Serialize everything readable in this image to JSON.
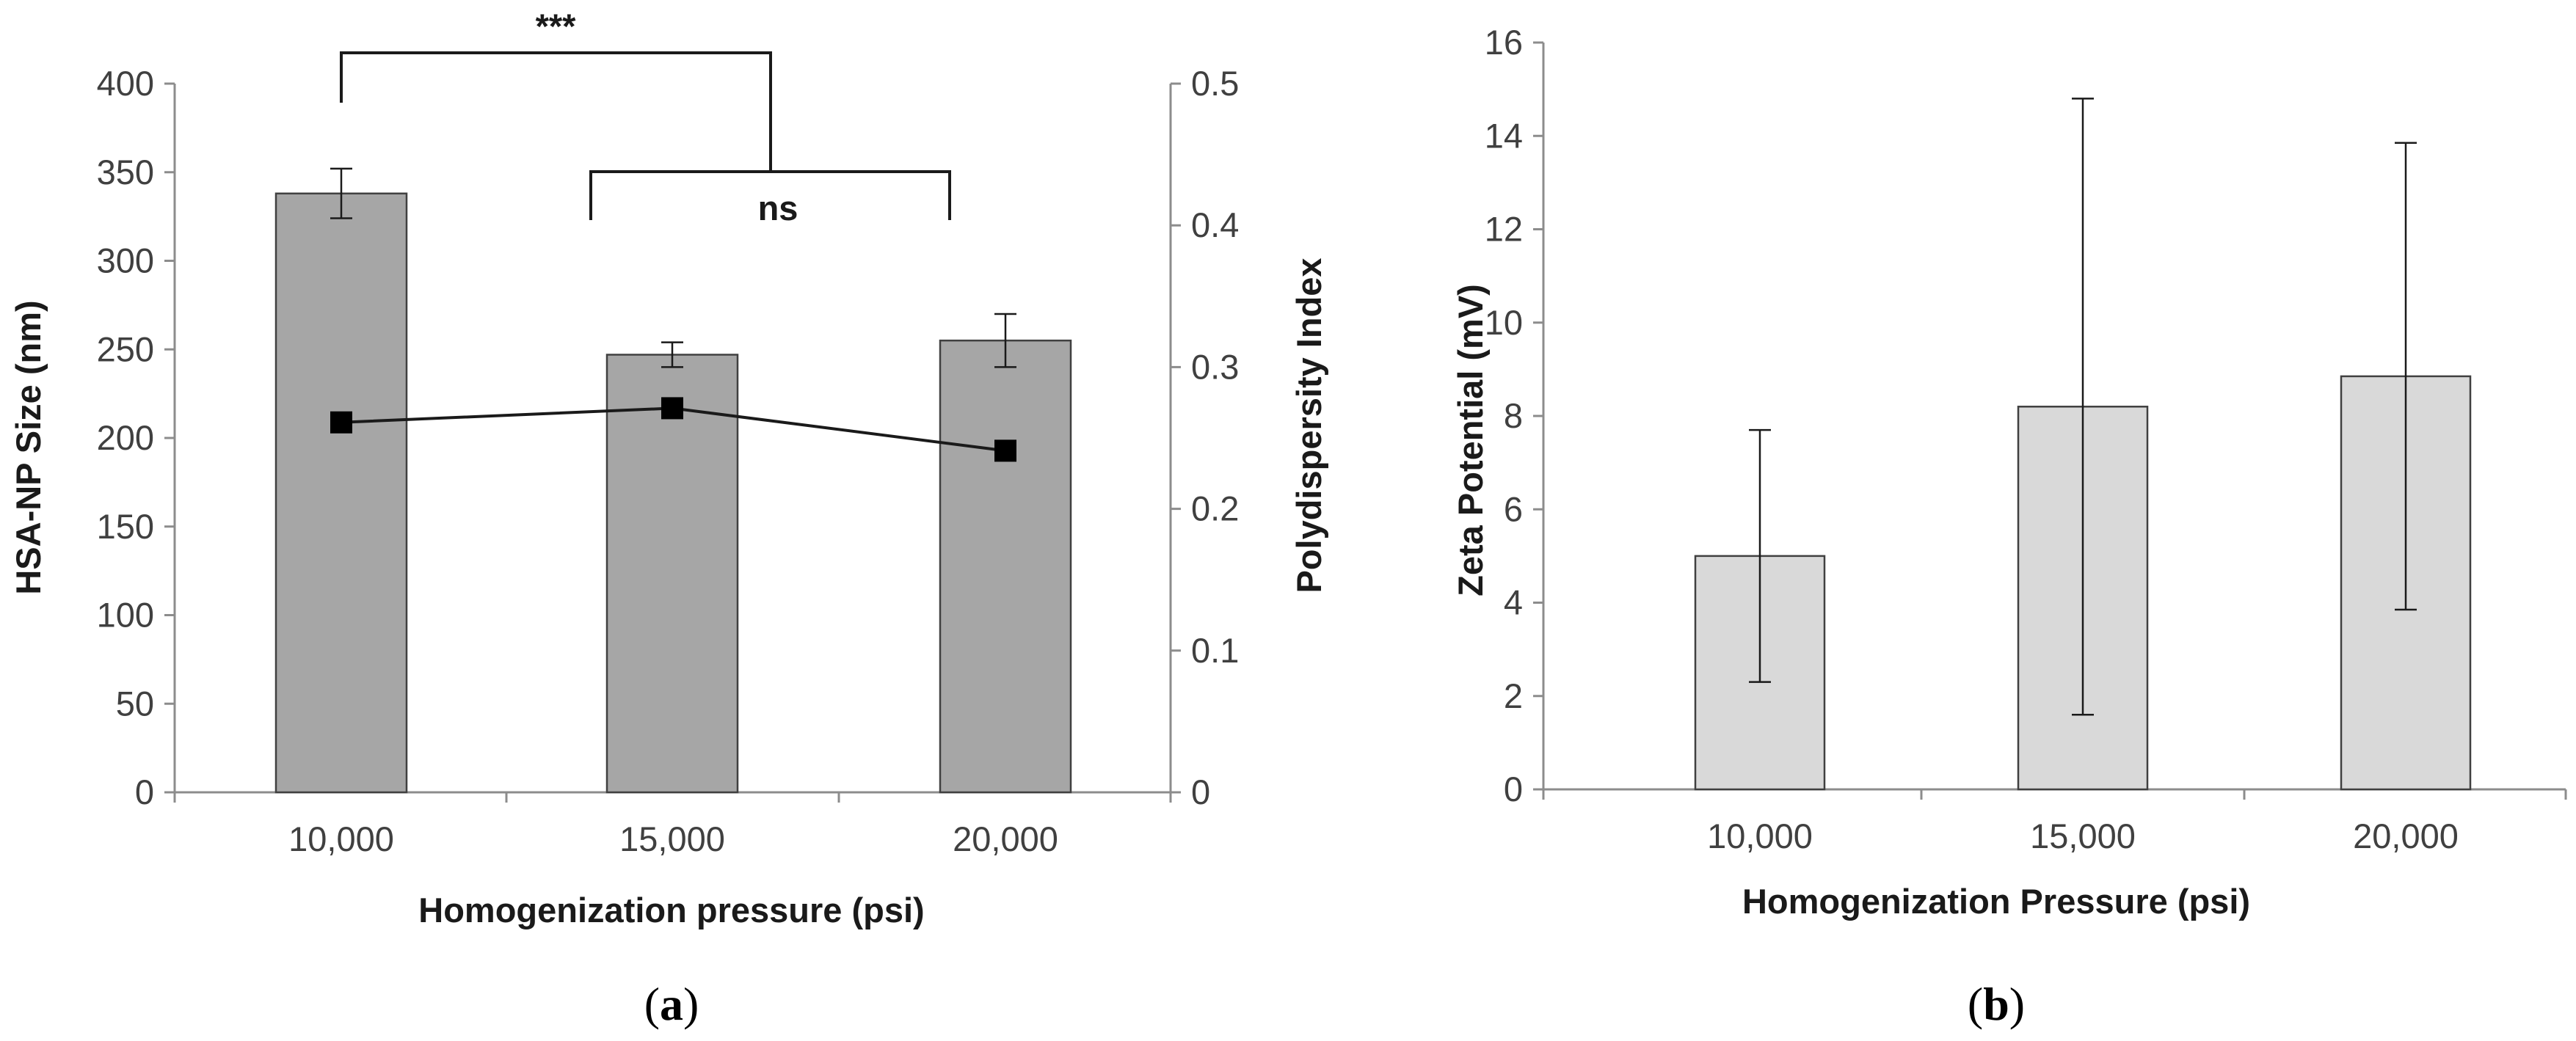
{
  "chart_data": [
    {
      "id": "a",
      "type": "bar",
      "caption": "a",
      "categories": [
        "10,000",
        "15,000",
        "20,000"
      ],
      "xlabel": "Homogenization pressure (psi)",
      "ylabel": "HSA-NP Size (nm)",
      "y2label": "Polydispersity Index",
      "ylim": [
        0,
        400
      ],
      "yticks": [
        "0",
        "50",
        "100",
        "150",
        "200",
        "250",
        "300",
        "350",
        "400"
      ],
      "y2lim": [
        0,
        0.5
      ],
      "y2ticks": [
        "0",
        "0.1",
        "0.2",
        "0.3",
        "0.4",
        "0.5"
      ],
      "bar_color": "#a6a6a6",
      "series": [
        {
          "name": "HSA-NP Size (nm)",
          "kind": "bar",
          "axis": "left",
          "values": [
            338,
            247,
            255
          ],
          "errors": [
            14,
            7,
            15
          ]
        },
        {
          "name": "Polydispersity Index",
          "kind": "line",
          "axis": "right",
          "values": [
            0.261,
            0.271,
            0.241
          ]
        }
      ],
      "annotations": [
        {
          "label": "***",
          "from": "10,000",
          "to": "15,000-20,000"
        },
        {
          "label": "ns",
          "from": "15,000",
          "to": "20,000"
        }
      ]
    },
    {
      "id": "b",
      "type": "bar",
      "caption": "b",
      "categories": [
        "10,000",
        "15,000",
        "20,000"
      ],
      "xlabel": "Homogenization Pressure (psi)",
      "ylabel": "Zeta Potential (mV)",
      "ylim": [
        0,
        16
      ],
      "yticks": [
        "0",
        "2",
        "4",
        "6",
        "8",
        "10",
        "12",
        "14",
        "16"
      ],
      "bar_color": "#d9d9d9",
      "series": [
        {
          "name": "Zeta Potential (mV)",
          "kind": "bar",
          "values": [
            5.0,
            8.2,
            8.85
          ],
          "errors": [
            2.7,
            6.6,
            5.0
          ]
        }
      ]
    }
  ]
}
